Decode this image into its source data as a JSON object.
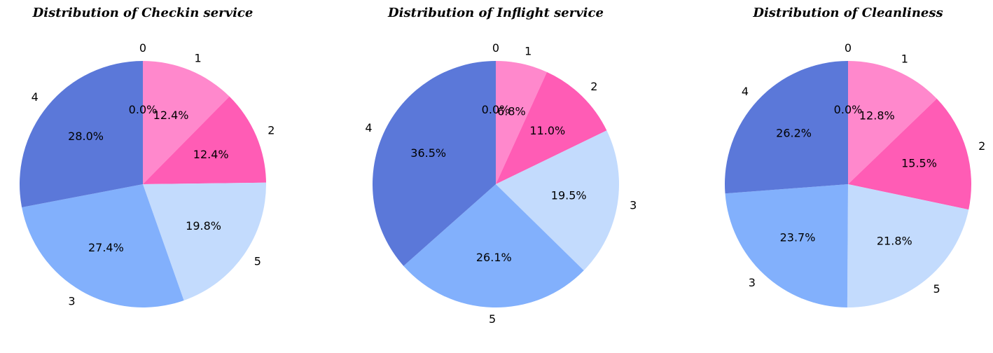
{
  "chart_data": [
    {
      "type": "pie",
      "title": "Distribution of Checkin service",
      "categories": [
        "0",
        "1",
        "2",
        "5",
        "3",
        "4"
      ],
      "values": [
        0.0,
        12.4,
        12.4,
        19.8,
        27.4,
        28.0
      ],
      "percent_labels": [
        "0.0%",
        "12.4%",
        "12.4%",
        "19.8%",
        "27.4%",
        "28.0%"
      ],
      "colors": [
        "#FF88CC",
        "#FF88CC",
        "#FF5CB5",
        "#C3DBFD",
        "#82B0FC",
        "#5B78D9"
      ],
      "start_angle_deg": 90,
      "direction": "clockwise",
      "legend": "none"
    },
    {
      "type": "pie",
      "title": "Distribution of Inflight service",
      "categories": [
        "0",
        "1",
        "2",
        "3",
        "5",
        "4"
      ],
      "values": [
        0.0,
        6.8,
        11.0,
        19.5,
        26.1,
        36.5
      ],
      "percent_labels": [
        "0.0%",
        "6.8%",
        "11.0%",
        "19.5%",
        "26.1%",
        "36.5%"
      ],
      "colors": [
        "#FF88CC",
        "#FF88CC",
        "#FF5CB5",
        "#C3DBFD",
        "#82B0FC",
        "#5B78D9"
      ],
      "start_angle_deg": 90,
      "direction": "clockwise",
      "legend": "none"
    },
    {
      "type": "pie",
      "title": "Distribution of Cleanliness",
      "categories": [
        "0",
        "1",
        "2",
        "5",
        "3",
        "4"
      ],
      "values": [
        0.0,
        12.8,
        15.5,
        21.8,
        23.7,
        26.2
      ],
      "percent_labels": [
        "0.0%",
        "12.8%",
        "15.5%",
        "21.8%",
        "23.7%",
        "26.2%"
      ],
      "colors": [
        "#FF88CC",
        "#FF88CC",
        "#FF5CB5",
        "#C3DBFD",
        "#82B0FC",
        "#5B78D9"
      ],
      "start_angle_deg": 90,
      "direction": "clockwise",
      "legend": "none"
    }
  ]
}
